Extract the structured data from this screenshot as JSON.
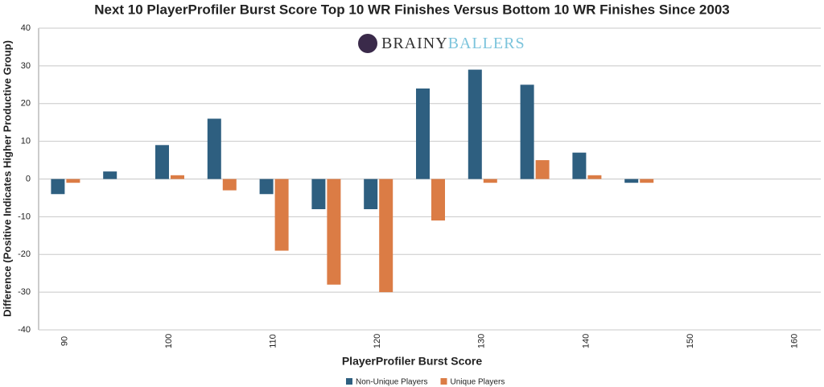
{
  "chart_data": {
    "type": "bar",
    "title": "Next 10 PlayerProfiler Burst Score Top 10 WR Finishes Versus Bottom 10 WR Finishes Since 2003",
    "logo_text": [
      "BRAINY",
      "BALLERS"
    ],
    "x_label": "PlayerProfiler Burst Score",
    "y_label": "Difference (Positive Indicates Higher Productive Group)",
    "categories": [
      "90",
      null,
      "100",
      null,
      "110",
      null,
      "120",
      null,
      "130",
      null,
      "140",
      null,
      "150",
      null,
      "160"
    ],
    "series": [
      {
        "name": "Non-Unique Players",
        "color": "#2e5f80",
        "values": [
          -4,
          2,
          9,
          16,
          -4,
          -8,
          -8,
          24,
          29,
          25,
          7,
          -1,
          null,
          null,
          null
        ]
      },
      {
        "name": "Unique Players",
        "color": "#db7c45",
        "values": [
          -1,
          null,
          1,
          -3,
          -19,
          -28,
          -30,
          -11,
          -1,
          5,
          1,
          -1,
          null,
          null,
          null
        ]
      }
    ],
    "ylim": [
      -40,
      40
    ],
    "yticks": [
      -40,
      -30,
      -20,
      -10,
      0,
      10,
      20,
      30,
      40
    ],
    "grid": true,
    "legend": "bottom"
  }
}
